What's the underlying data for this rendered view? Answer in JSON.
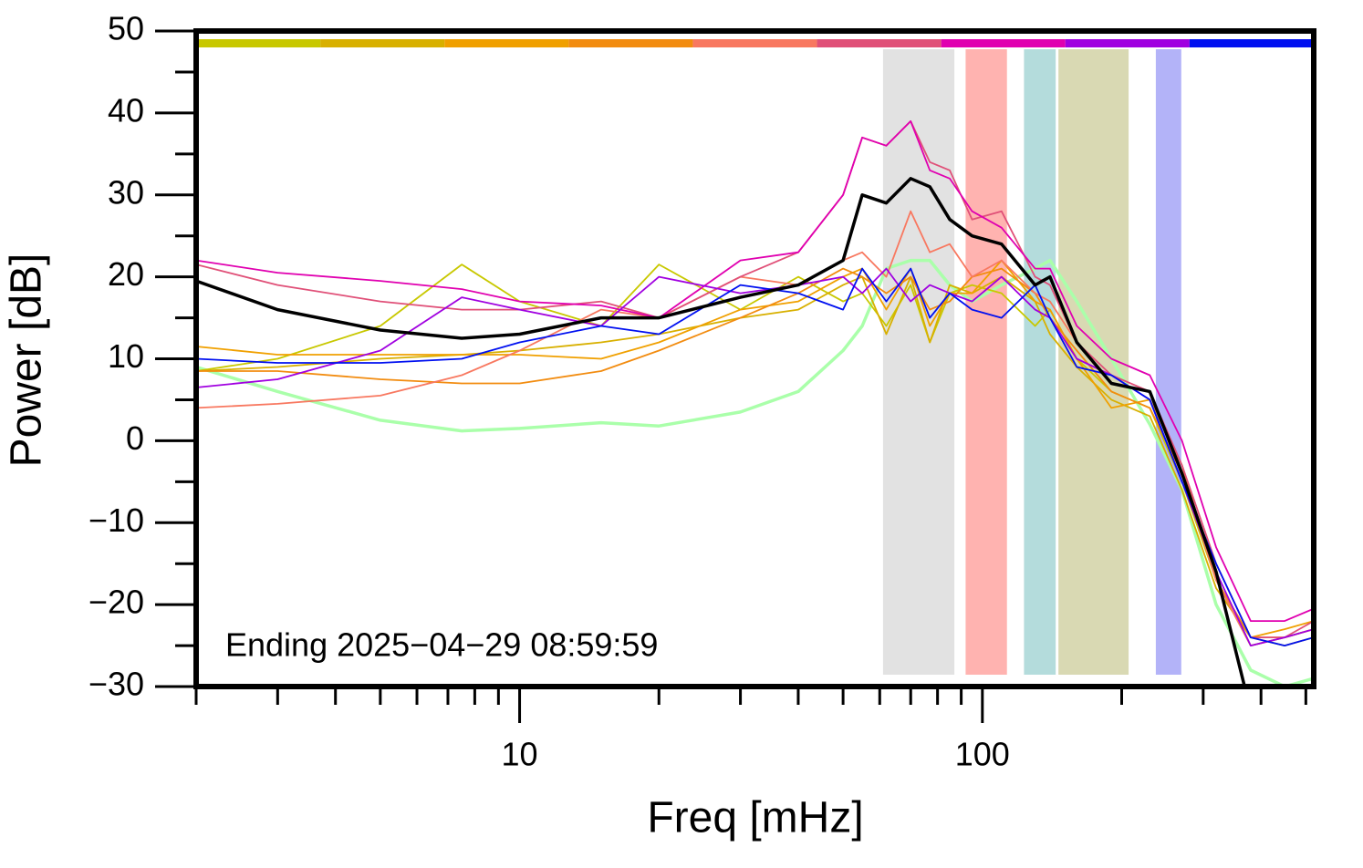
{
  "chart_data": {
    "type": "line",
    "xlabel": "Freq [mHz]",
    "ylabel": "Power [dB]",
    "annotation": "Ending 2025−04−29 08:59:59",
    "xscale": "log",
    "xlim": [
      2,
      520
    ],
    "ylim": [
      -30,
      50
    ],
    "xticks": [
      10,
      100
    ],
    "xminor_ticks": [
      2,
      3,
      4,
      5,
      6,
      7,
      8,
      9,
      20,
      30,
      40,
      50,
      60,
      70,
      80,
      90,
      200,
      300,
      400,
      500
    ],
    "yticks": [
      {
        "value": -30,
        "label": "−30"
      },
      {
        "value": -20,
        "label": "−20"
      },
      {
        "value": -10,
        "label": "−10"
      },
      0,
      10,
      20,
      30,
      40,
      50
    ],
    "yminor_ticks": [
      -25,
      -15,
      -5,
      5,
      15,
      25,
      35,
      45
    ],
    "bands": [
      {
        "from": 61,
        "to": 87,
        "color": "#e2e2e2"
      },
      {
        "from": 92,
        "to": 113,
        "color": "#ffb3b0"
      },
      {
        "from": 123,
        "to": 144,
        "color": "#b4dcdc"
      },
      {
        "from": 146,
        "to": 207,
        "color": "#d9d9b3"
      },
      {
        "from": 237,
        "to": 269,
        "color": "#b3b3f8"
      }
    ],
    "colorbar_colors": [
      "#c8c800",
      "#d8b000",
      "#f0a000",
      "#f28c10",
      "#f87860",
      "#e05078",
      "#e000b0",
      "#a000e0",
      "#0010f0"
    ],
    "x": [
      2,
      3,
      5,
      7.5,
      10,
      15,
      20,
      30,
      40,
      50,
      55,
      62,
      70,
      77,
      85,
      95,
      110,
      130,
      140,
      160,
      190,
      230,
      270,
      320,
      380,
      450,
      520
    ],
    "series": [
      {
        "color": "#aaffaa",
        "values": [
          9,
          6,
          2.5,
          1.2,
          1.5,
          2.2,
          1.8,
          3.5,
          6,
          11,
          14,
          21,
          22,
          22,
          19,
          17,
          19,
          21,
          22,
          17,
          10,
          2,
          -6,
          -20,
          -28,
          -30,
          -29
        ]
      },
      {
        "color": "#c8c800",
        "values": [
          8.5,
          10,
          14,
          21.5,
          17,
          14,
          21.5,
          16,
          20,
          17,
          18,
          14,
          19,
          12,
          18,
          19,
          18,
          14,
          16,
          10,
          6,
          4,
          -5,
          -17,
          -25,
          -24,
          -23
        ]
      },
      {
        "color": "#d8b000",
        "values": [
          8.5,
          9,
          10,
          10.5,
          11,
          12,
          13,
          15,
          16,
          19,
          20,
          13,
          20,
          12,
          19,
          18,
          20,
          17,
          13,
          9,
          5,
          3,
          -6,
          -18,
          -24,
          -25,
          -24
        ]
      },
      {
        "color": "#f0a000",
        "values": [
          11.5,
          10.5,
          10.5,
          10.5,
          10.5,
          10,
          12,
          16,
          17,
          20,
          21,
          16,
          21,
          14,
          18,
          18,
          22,
          17,
          16,
          10,
          4,
          5,
          -3,
          -17,
          -24,
          -23,
          -22
        ]
      },
      {
        "color": "#f28c10",
        "values": [
          8.5,
          8.5,
          7.5,
          7,
          7,
          8.5,
          11,
          15,
          18,
          21,
          20,
          18,
          20,
          16,
          17,
          20,
          21,
          18,
          15,
          11,
          6,
          4,
          -4,
          -17,
          -24,
          -24,
          -23
        ]
      },
      {
        "color": "#f87860",
        "values": [
          4,
          4.5,
          5.5,
          8,
          11,
          16,
          15,
          20,
          19,
          22,
          23,
          20,
          28,
          23,
          24,
          20,
          22,
          18,
          17,
          12,
          7,
          6,
          -4,
          -17,
          -25,
          -24,
          -23
        ]
      },
      {
        "color": "#e05078",
        "values": [
          21.5,
          19,
          17,
          16,
          16,
          17,
          15,
          20,
          23,
          30,
          37,
          36,
          39,
          34,
          33,
          27,
          28,
          20,
          19,
          12,
          8,
          6,
          -3,
          -15,
          -24,
          -24,
          -22
        ]
      },
      {
        "color": "#e000b0",
        "values": [
          22,
          20.5,
          19.5,
          18.5,
          17,
          16.5,
          15,
          22,
          23,
          30,
          37,
          36,
          39,
          33,
          32,
          28,
          26,
          21,
          21,
          14,
          10,
          8,
          0,
          -13,
          -22,
          -22,
          -20.5
        ]
      },
      {
        "color": "#a000e0",
        "values": [
          6.5,
          7.5,
          11,
          17.5,
          16,
          14,
          20,
          18,
          19,
          20,
          18,
          21,
          17,
          19,
          18,
          17,
          20,
          16,
          15,
          10,
          8,
          5,
          -5,
          -16,
          -25,
          -24,
          -23
        ]
      },
      {
        "color": "#0010f0",
        "values": [
          10,
          9.5,
          9.5,
          10,
          12,
          14,
          13,
          19,
          18,
          16,
          21,
          17,
          21,
          15,
          18,
          16,
          15,
          19,
          15,
          9,
          8,
          5,
          -5,
          -15,
          -24,
          -25,
          -24
        ]
      },
      {
        "color": "#000000",
        "values": [
          19.5,
          16,
          13.5,
          12.5,
          13,
          15,
          15,
          17.5,
          19,
          22,
          30,
          29,
          32,
          31,
          27,
          25,
          24,
          19,
          20,
          12,
          7,
          6,
          -4,
          -16,
          -33,
          null,
          null
        ]
      }
    ]
  }
}
